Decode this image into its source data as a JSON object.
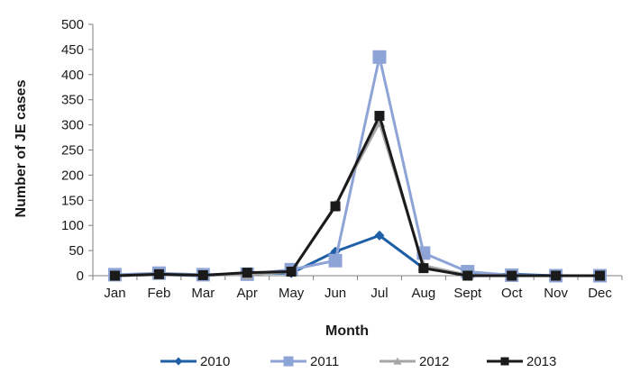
{
  "chart_data": {
    "type": "line",
    "categories": [
      "Jan",
      "Feb",
      "Mar",
      "Apr",
      "May",
      "Jun",
      "Jul",
      "Aug",
      "Sept",
      "Oct",
      "Nov",
      "Dec"
    ],
    "series": [
      {
        "name": "2010",
        "color": "#1f5fa6",
        "marker": "diamond",
        "values": [
          0,
          2,
          0,
          5,
          5,
          48,
          80,
          15,
          2,
          3,
          0,
          0
        ]
      },
      {
        "name": "2011",
        "color": "#8ea4d6",
        "marker": "square",
        "values": [
          2,
          5,
          2,
          3,
          12,
          30,
          435,
          45,
          8,
          1,
          0,
          0
        ]
      },
      {
        "name": "2012",
        "color": "#a6a6a6",
        "marker": "triangle",
        "values": [
          0,
          2,
          1,
          2,
          8,
          140,
          305,
          20,
          1,
          0,
          0,
          0
        ]
      },
      {
        "name": "2013",
        "color": "#1a1a1a",
        "marker": "square",
        "values": [
          0,
          3,
          1,
          6,
          8,
          138,
          318,
          15,
          0,
          0,
          0,
          0
        ]
      }
    ],
    "xlabel": "Month",
    "ylabel": "Number of JE cases",
    "ylim": [
      0,
      500
    ],
    "yticks": [
      "0",
      "50",
      "100",
      "150",
      "200",
      "250",
      "300",
      "350",
      "400",
      "450",
      "500"
    ],
    "grid": false,
    "legend_position": "bottom"
  }
}
